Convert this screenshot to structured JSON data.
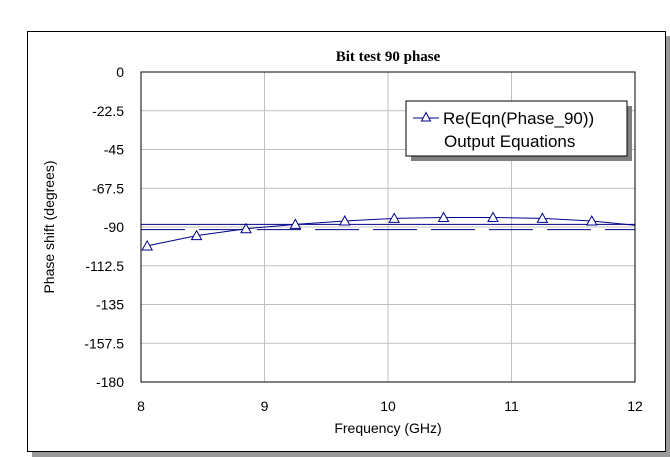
{
  "chart_data": {
    "type": "line",
    "title": "Bit test 90 phase",
    "xlabel": "Frequency (GHz)",
    "ylabel": "Phase shift (degrees)",
    "xlim": [
      8,
      12
    ],
    "ylim": [
      -180,
      0
    ],
    "xticks": [
      8,
      9,
      10,
      11,
      12
    ],
    "xtick_labels": [
      "8",
      "9",
      "10",
      "11",
      "12"
    ],
    "yticks": [
      0,
      -22.5,
      -45,
      -67.5,
      -90,
      -112.5,
      -135,
      -157.5,
      -180
    ],
    "ytick_labels": [
      "0",
      "-22.5",
      "-45",
      "-67.5",
      "-90",
      "-112.5",
      "-135",
      "-157.5",
      "-180"
    ],
    "grid": true,
    "legend_position": "top-right",
    "legend": [
      "Re(Eqn(Phase_90))",
      "Output Equations"
    ],
    "series": [
      {
        "name": "Re(Eqn(Phase_90))",
        "color": "#00008b",
        "marker": "triangle",
        "x": [
          8.05,
          8.45,
          8.85,
          9.25,
          9.65,
          10.05,
          10.45,
          10.85,
          11.25,
          11.65,
          12.0
        ],
        "y": [
          -101,
          -95,
          -91,
          -88.5,
          -86.5,
          -85,
          -84.5,
          -84.5,
          -85,
          -86.5,
          -89
        ],
        "marker_x": [
          8.05,
          8.45,
          8.85,
          9.25,
          9.65,
          10.05,
          10.45,
          10.85,
          11.25,
          11.65
        ]
      }
    ],
    "reference_lines": [
      {
        "y": -88.5,
        "style": "solid"
      },
      {
        "y": -91.5,
        "style": "dashed"
      }
    ]
  }
}
